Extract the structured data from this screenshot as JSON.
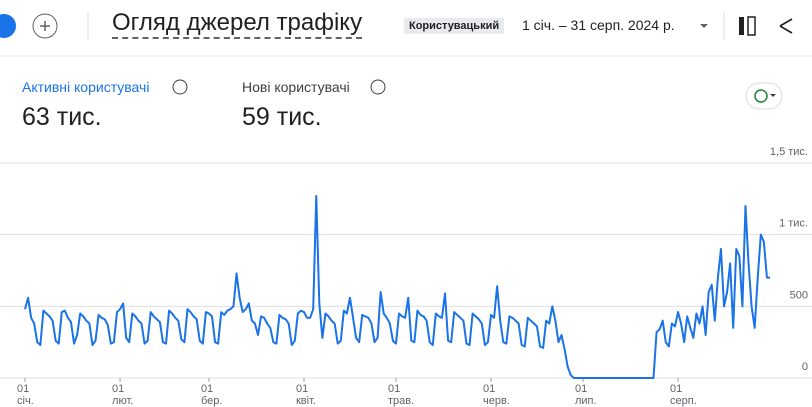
{
  "header": {
    "title": "Огляд джерел трафіку",
    "comparison": "Користувацький",
    "date_range": "1 січ. – 31 серп. 2024 р."
  },
  "metrics": [
    {
      "label": "Активні користувачі",
      "value": "63 тис."
    },
    {
      "label": "Нові користувачі",
      "value": "59 тис."
    }
  ],
  "chart_data": {
    "type": "line",
    "color": "#1a73e8",
    "grid": true,
    "ylim": [
      0,
      1500
    ],
    "yticks": [
      0,
      500,
      {
        "value": 1000,
        "label": "1 тис."
      },
      {
        "value": 1500,
        "label": "1,5 тис."
      }
    ],
    "categories": [
      "01\nсіч.",
      null,
      null,
      null,
      null,
      null,
      null,
      null,
      null,
      null,
      null,
      null,
      null,
      null,
      null,
      null,
      null,
      null,
      null,
      null,
      null,
      null,
      null,
      null,
      null,
      null,
      null,
      null,
      null,
      null,
      null,
      "01\nлют.",
      null,
      null,
      null,
      null,
      null,
      null,
      null,
      null,
      null,
      null,
      null,
      null,
      null,
      null,
      null,
      null,
      null,
      null,
      null,
      null,
      null,
      null,
      null,
      null,
      null,
      null,
      null,
      null,
      "01\nбер.",
      null,
      null,
      null,
      null,
      null,
      null,
      null,
      null,
      null,
      null,
      null,
      null,
      null,
      null,
      null,
      null,
      null,
      null,
      null,
      null,
      null,
      null,
      null,
      null,
      null,
      null,
      null,
      null,
      null,
      null,
      "01\nквіт.",
      null,
      null,
      null,
      null,
      null,
      null,
      null,
      null,
      null,
      null,
      null,
      null,
      null,
      null,
      null,
      null,
      null,
      null,
      null,
      null,
      null,
      null,
      null,
      null,
      null,
      null,
      null,
      null,
      null,
      "01\nтрав.",
      null,
      null,
      null,
      null,
      null,
      null,
      null,
      null,
      null,
      null,
      null,
      null,
      null,
      null,
      null,
      null,
      null,
      null,
      null,
      null,
      null,
      null,
      null,
      null,
      null,
      null,
      null,
      null,
      null,
      null,
      "01\nчерв.",
      null,
      null,
      null,
      null,
      null,
      null,
      null,
      null,
      null,
      null,
      null,
      null,
      null,
      null,
      null,
      null,
      null,
      null,
      null,
      null,
      null,
      null,
      null,
      null,
      null,
      null,
      null,
      null,
      null,
      "01\nлип.",
      null,
      null,
      null,
      null,
      null,
      null,
      null,
      null,
      null,
      null,
      null,
      null,
      null,
      null,
      null,
      null,
      null,
      null,
      null,
      null,
      null,
      null,
      null,
      null,
      null,
      null,
      null,
      null,
      null,
      null,
      "01\nсерп.",
      null,
      null,
      null,
      null,
      null,
      null,
      null,
      null,
      null,
      null,
      null,
      null,
      null,
      null,
      null,
      null,
      null,
      null,
      null,
      null,
      null,
      null,
      null,
      null,
      null,
      null,
      null,
      null,
      null,
      null
    ],
    "values": [
      480,
      560,
      420,
      380,
      250,
      230,
      470,
      450,
      430,
      400,
      260,
      240,
      460,
      470,
      420,
      390,
      240,
      300,
      450,
      430,
      400,
      380,
      230,
      260,
      440,
      420,
      410,
      370,
      240,
      250,
      460,
      480,
      520,
      280,
      250,
      450,
      430,
      400,
      380,
      240,
      260,
      460,
      430,
      410,
      390,
      250,
      240,
      470,
      450,
      420,
      400,
      270,
      250,
      480,
      460,
      430,
      410,
      260,
      240,
      460,
      450,
      430,
      250,
      240,
      460,
      440,
      470,
      480,
      500,
      730,
      560,
      460,
      480,
      520,
      400,
      380,
      300,
      430,
      420,
      380,
      350,
      250,
      240,
      440,
      420,
      410,
      380,
      230,
      260,
      450,
      470,
      460,
      420,
      420,
      480,
      1270,
      520,
      280,
      450,
      430,
      400,
      380,
      240,
      260,
      470,
      450,
      560,
      420,
      280,
      250,
      440,
      430,
      420,
      380,
      250,
      280,
      600,
      450,
      420,
      380,
      260,
      240,
      450,
      430,
      420,
      560,
      260,
      250,
      470,
      440,
      430,
      400,
      250,
      230,
      450,
      430,
      420,
      590,
      260,
      250,
      460,
      440,
      420,
      400,
      240,
      230,
      450,
      430,
      410,
      380,
      230,
      250,
      440,
      420,
      640,
      400,
      250,
      240,
      430,
      420,
      400,
      380,
      230,
      220,
      420,
      400,
      380,
      360,
      220,
      210,
      400,
      380,
      500,
      400,
      250,
      300,
      200,
      80,
      20,
      0,
      0,
      0,
      0,
      0,
      0,
      0,
      0,
      0,
      0,
      0,
      0,
      0,
      0,
      0,
      0,
      0,
      0,
      0,
      0,
      0,
      0,
      0,
      0,
      0,
      0,
      0,
      320,
      340,
      400,
      250,
      220,
      380,
      360,
      460,
      380,
      250,
      430,
      350,
      280,
      450,
      380,
      500,
      300,
      600,
      650,
      400,
      700,
      900,
      500,
      600,
      800,
      350,
      900,
      850,
      500,
      1200,
      800,
      500,
      350,
      700,
      1000,
      950,
      700,
      700
    ]
  }
}
